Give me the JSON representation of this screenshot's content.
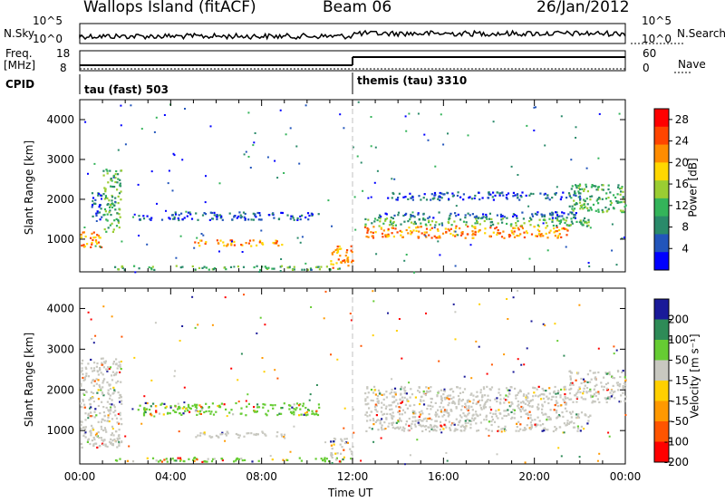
{
  "header": {
    "station": "Wallops Island (fitACF)",
    "beam": "Beam 06",
    "date": "26/Jan/2012"
  },
  "strip": {
    "nsky_label": "N.Sky",
    "nsky_ticks": [
      "10^5",
      "10^0"
    ],
    "nsearch_label": "N.Search",
    "nsearch_ticks": [
      "10^5",
      "10^0"
    ],
    "freq_label": "Freq.",
    "freq_unit": "[MHz]",
    "freq_ticks": [
      "18",
      "8"
    ],
    "nave_label": "Nave",
    "nave_ticks": [
      "60",
      "0"
    ],
    "cpid_label": "CPID",
    "cpid_segments": [
      {
        "label": "tau (fast) 503",
        "start_hour": 0,
        "end_hour": 12
      },
      {
        "label": "themis (tau) 3310",
        "start_hour": 12,
        "end_hour": 24
      }
    ],
    "freq_steps": [
      {
        "from_hour": 0,
        "to_hour": 12,
        "level": "low"
      },
      {
        "from_hour": 12,
        "to_hour": 24,
        "level": "high"
      }
    ]
  },
  "colors": {
    "power": [
      "#0000ff",
      "#2255bb",
      "#2a8a6a",
      "#34b45a",
      "#9acd32",
      "#ffd700",
      "#ff8c00",
      "#ff4500",
      "#ff0000"
    ],
    "velocity": [
      "#1a1a99",
      "#2e8b57",
      "#66cc33",
      "#c8c8c0",
      "#ffd000",
      "#ff9900",
      "#ff5500",
      "#ff0000"
    ],
    "grey_scatter": "#c8c8c0",
    "divider": "#c0c0c0"
  },
  "chart_data": [
    {
      "type": "heatmap",
      "name": "power",
      "ylabel": "Slant Range [km]",
      "xlabel": "Time UT",
      "x_ticks": [
        "00:00",
        "04:00",
        "08:00",
        "12:00",
        "16:00",
        "20:00",
        "00:00"
      ],
      "xlim_hours": [
        0,
        24
      ],
      "ylim_km": [
        180,
        4500
      ],
      "y_ticks": [
        1000,
        2000,
        3000,
        4000
      ],
      "colorbar": {
        "label": "Power [dB]",
        "ticks": [
          4,
          8,
          12,
          16,
          20,
          24,
          28
        ],
        "range": [
          0,
          30
        ]
      },
      "bands": [
        {
          "t0": 0.0,
          "t1": 1.0,
          "r0": 800,
          "r1": 1200,
          "level": "high"
        },
        {
          "t0": 1.0,
          "t1": 1.8,
          "r0": 1200,
          "r1": 2800,
          "level": "mid"
        },
        {
          "t0": 0.5,
          "t1": 1.0,
          "r0": 1500,
          "r1": 2200,
          "level": "low"
        },
        {
          "t0": 2.5,
          "t1": 10.5,
          "r0": 1500,
          "r1": 1700,
          "level": "low"
        },
        {
          "t0": 5.0,
          "t1": 9.0,
          "r0": 850,
          "r1": 1000,
          "level": "high"
        },
        {
          "t0": 1.5,
          "t1": 11.5,
          "r0": 250,
          "r1": 350,
          "level": "mid"
        },
        {
          "t0": 11.0,
          "t1": 12.0,
          "r0": 300,
          "r1": 850,
          "level": "high"
        },
        {
          "t0": 12.5,
          "t1": 21.5,
          "r0": 1050,
          "r1": 1350,
          "level": "high"
        },
        {
          "t0": 12.5,
          "t1": 22.5,
          "r0": 1350,
          "r1": 1550,
          "level": "mid"
        },
        {
          "t0": 13.0,
          "t1": 22.0,
          "r0": 1550,
          "r1": 1700,
          "level": "low"
        },
        {
          "t0": 21.5,
          "t1": 24.0,
          "r0": 1700,
          "r1": 2400,
          "level": "mid"
        },
        {
          "t0": 13.5,
          "t1": 22.0,
          "r0": 2000,
          "r1": 2200,
          "level": "low"
        }
      ]
    },
    {
      "type": "heatmap",
      "name": "velocity",
      "ylabel": "Slant Range [km]",
      "xlabel": "Time UT",
      "x_ticks": [
        "00:00",
        "04:00",
        "08:00",
        "12:00",
        "16:00",
        "20:00",
        "00:00"
      ],
      "xlim_hours": [
        0,
        24
      ],
      "ylim_km": [
        180,
        4500
      ],
      "y_ticks": [
        1000,
        2000,
        3000,
        4000
      ],
      "colorbar": {
        "label": "Velocity [m s⁻¹]",
        "ticks": [
          200,
          100,
          50,
          15,
          -15,
          -50,
          -100,
          -200
        ],
        "range": [
          -250,
          250
        ]
      },
      "bands": [
        {
          "t0": 0.0,
          "t1": 1.8,
          "r0": 600,
          "r1": 2800,
          "level": "grey"
        },
        {
          "t0": 2.5,
          "t1": 10.5,
          "r0": 1400,
          "r1": 1700,
          "level": "green"
        },
        {
          "t0": 5.0,
          "t1": 9.0,
          "r0": 850,
          "r1": 1000,
          "level": "grey"
        },
        {
          "t0": 1.5,
          "t1": 11.5,
          "r0": 250,
          "r1": 350,
          "level": "green"
        },
        {
          "t0": 11.0,
          "t1": 12.0,
          "r0": 300,
          "r1": 850,
          "level": "grey"
        },
        {
          "t0": 12.5,
          "t1": 22.5,
          "r0": 1000,
          "r1": 1500,
          "level": "grey"
        },
        {
          "t0": 12.5,
          "t1": 21.5,
          "r0": 1500,
          "r1": 2100,
          "level": "grey"
        },
        {
          "t0": 21.5,
          "t1": 24.0,
          "r0": 1700,
          "r1": 2500,
          "level": "grey"
        }
      ]
    }
  ]
}
